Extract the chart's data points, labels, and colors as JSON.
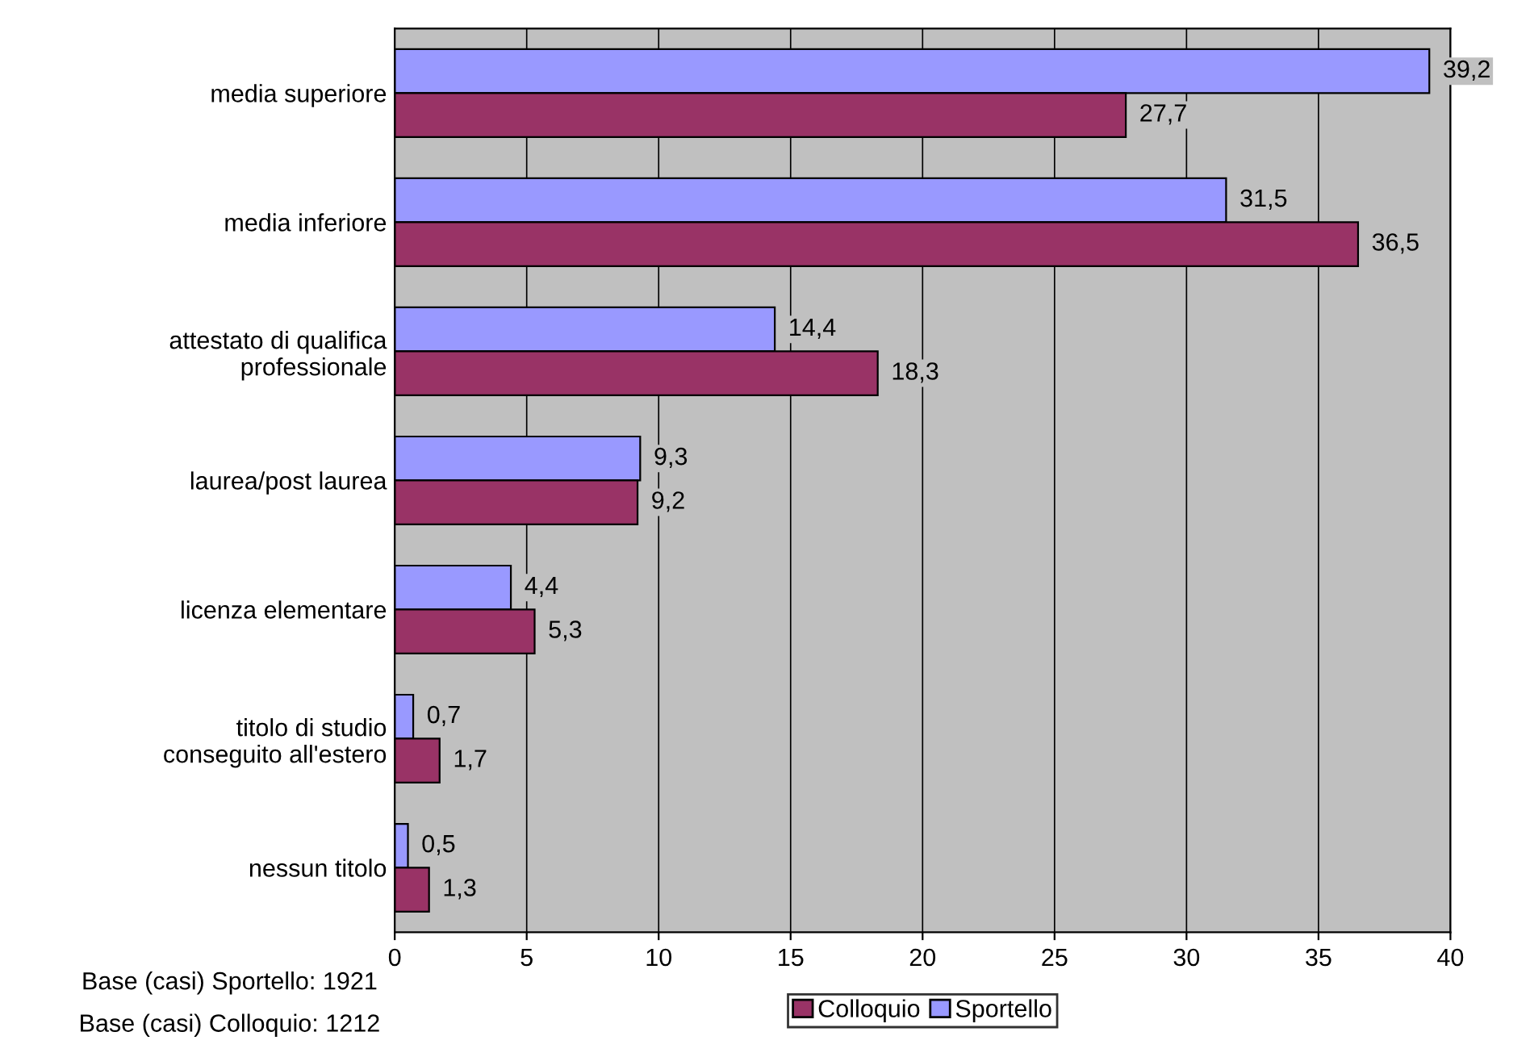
{
  "chart_data": {
    "type": "bar",
    "orientation": "horizontal",
    "categories": [
      "media superiore",
      "media inferiore",
      "attestato di qualifica\nprofessionale",
      "laurea/post laurea",
      "licenza elementare",
      "titolo di studio\nconseguito all'estero",
      "nessun titolo"
    ],
    "series": [
      {
        "name": "Sportello",
        "color": "#9999ff",
        "values": [
          39.2,
          31.5,
          14.4,
          9.3,
          4.4,
          0.7,
          0.5
        ],
        "value_labels": [
          "39,2",
          "31,5",
          "14,4",
          "9,3",
          "4,4",
          "0,7",
          "0,5"
        ]
      },
      {
        "name": "Colloquio",
        "color": "#993366",
        "values": [
          27.7,
          36.5,
          18.3,
          9.2,
          5.3,
          1.7,
          1.3
        ],
        "value_labels": [
          "27,7",
          "36,5",
          "18,3",
          "9,2",
          "5,3",
          "1,7",
          "1,3"
        ]
      }
    ],
    "xlim": [
      0,
      40
    ],
    "xticks": [
      0,
      5,
      10,
      15,
      20,
      25,
      30,
      35,
      40
    ],
    "grid": "x",
    "legend": "bottom",
    "annotations": [
      "Base (casi) Sportello: 1921",
      "Base (casi) Colloquio: 1212"
    ]
  }
}
